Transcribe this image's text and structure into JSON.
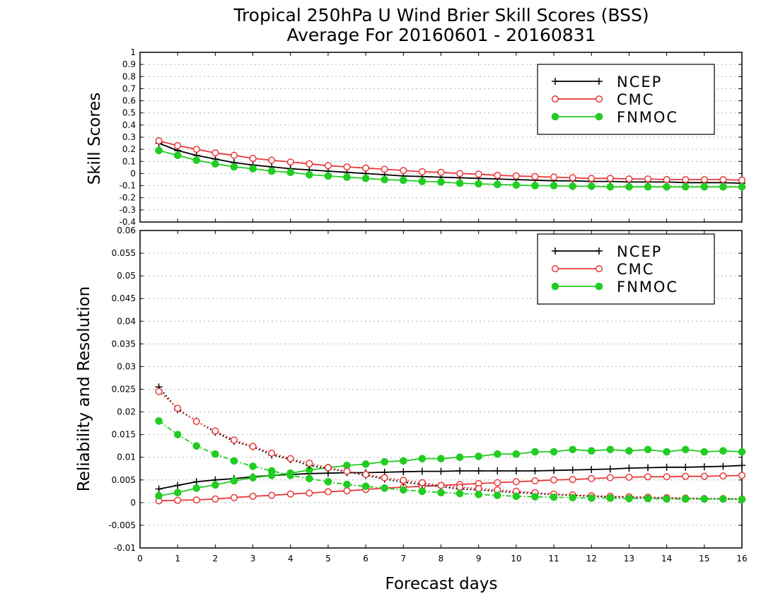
{
  "title": "Tropical 250hPa U Wind Brier Skill Scores (BSS)",
  "subtitle": "Average For 20160601 - 20160831",
  "colors": {
    "NCEP": "#000000",
    "CMC": "#e8383b",
    "FNMOC": "#22cc22",
    "grid": "#b4b4b4"
  },
  "chart_data": [
    {
      "type": "line",
      "ylabel": "Skill Scores",
      "xlim": [
        0,
        16
      ],
      "ylim": [
        -0.4,
        1
      ],
      "y_ticks": [
        "-0.4",
        "-0.3",
        "-0.2",
        "-0.1",
        "0",
        "0.1",
        "0.2",
        "0.3",
        "0.4",
        "0.5",
        "0.6",
        "0.7",
        "0.8",
        "0.9",
        "1"
      ],
      "grid": "horizontal dotted",
      "legend": {
        "placement": "top-right",
        "entries": [
          "NCEP",
          "CMC",
          "FNMOC"
        ]
      },
      "x": [
        0.5,
        1,
        1.5,
        2,
        2.5,
        3,
        3.5,
        4,
        4.5,
        5,
        5.5,
        6,
        6.5,
        7,
        7.5,
        8,
        8.5,
        9,
        9.5,
        10,
        10.5,
        11,
        11.5,
        12,
        12.5,
        13,
        13.5,
        14,
        14.5,
        15,
        15.5,
        16
      ],
      "series": [
        {
          "name": "NCEP",
          "marker": "plus",
          "line": "solid",
          "values": [
            0.25,
            0.19,
            0.15,
            0.12,
            0.09,
            0.07,
            0.055,
            0.04,
            0.03,
            0.02,
            0.01,
            0.0,
            -0.01,
            -0.02,
            -0.025,
            -0.03,
            -0.035,
            -0.04,
            -0.045,
            -0.05,
            -0.055,
            -0.06,
            -0.06,
            -0.065,
            -0.065,
            -0.07,
            -0.07,
            -0.07,
            -0.075,
            -0.075,
            -0.075,
            -0.08
          ]
        },
        {
          "name": "CMC",
          "marker": "open-circle",
          "line": "solid",
          "values": [
            0.27,
            0.23,
            0.2,
            0.17,
            0.15,
            0.125,
            0.11,
            0.095,
            0.08,
            0.065,
            0.055,
            0.045,
            0.035,
            0.025,
            0.015,
            0.01,
            0.0,
            -0.005,
            -0.015,
            -0.02,
            -0.025,
            -0.03,
            -0.035,
            -0.04,
            -0.04,
            -0.045,
            -0.045,
            -0.05,
            -0.05,
            -0.05,
            -0.05,
            -0.055
          ]
        },
        {
          "name": "FNMOC",
          "marker": "filled-circle",
          "line": "solid",
          "values": [
            0.19,
            0.15,
            0.11,
            0.08,
            0.055,
            0.04,
            0.02,
            0.01,
            -0.01,
            -0.02,
            -0.03,
            -0.04,
            -0.05,
            -0.055,
            -0.065,
            -0.07,
            -0.08,
            -0.085,
            -0.09,
            -0.095,
            -0.1,
            -0.1,
            -0.105,
            -0.105,
            -0.11,
            -0.11,
            -0.11,
            -0.11,
            -0.11,
            -0.11,
            -0.11,
            -0.11
          ]
        }
      ]
    },
    {
      "type": "line",
      "xlabel": "Forecast days",
      "ylabel": "Reliability and Resolution",
      "xlim": [
        0,
        16
      ],
      "ylim": [
        -0.01,
        0.06
      ],
      "x_ticks": [
        "0",
        "1",
        "2",
        "3",
        "4",
        "5",
        "6",
        "7",
        "8",
        "9",
        "10",
        "11",
        "12",
        "13",
        "14",
        "15",
        "16"
      ],
      "y_ticks": [
        "-0.01",
        "-0.005",
        "0",
        "0.005",
        "0.01",
        "0.015",
        "0.02",
        "0.025",
        "0.03",
        "0.035",
        "0.04",
        "0.045",
        "0.05",
        "0.055",
        "0.06"
      ],
      "grid": "horizontal dotted",
      "legend": {
        "placement": "top-right",
        "entries": [
          "NCEP",
          "CMC",
          "FNMOC"
        ]
      },
      "x": [
        0.5,
        1,
        1.5,
        2,
        2.5,
        3,
        3.5,
        4,
        4.5,
        5,
        5.5,
        6,
        6.5,
        7,
        7.5,
        8,
        8.5,
        9,
        9.5,
        10,
        10.5,
        11,
        11.5,
        12,
        12.5,
        13,
        13.5,
        14,
        14.5,
        15,
        15.5,
        16
      ],
      "series": [
        {
          "name": "NCEP",
          "measure": "resolution",
          "marker": "plus",
          "line": "solid",
          "values": [
            0.003,
            0.0038,
            0.0046,
            0.005,
            0.0053,
            0.0057,
            0.006,
            0.0062,
            0.0064,
            0.0065,
            0.0066,
            0.0066,
            0.0067,
            0.0068,
            0.0069,
            0.0069,
            0.007,
            0.007,
            0.007,
            0.007,
            0.007,
            0.0071,
            0.0072,
            0.0073,
            0.0074,
            0.0076,
            0.0077,
            0.0078,
            0.0078,
            0.0079,
            0.008,
            0.0082
          ]
        },
        {
          "name": "CMC",
          "measure": "resolution",
          "marker": "open-circle",
          "line": "solid",
          "values": [
            0.0004,
            0.0005,
            0.0006,
            0.0008,
            0.0011,
            0.0014,
            0.0016,
            0.0019,
            0.0021,
            0.0024,
            0.0026,
            0.0029,
            0.0032,
            0.0034,
            0.0036,
            0.0038,
            0.004,
            0.0042,
            0.0044,
            0.0046,
            0.0048,
            0.005,
            0.0051,
            0.0053,
            0.0055,
            0.0056,
            0.0057,
            0.0057,
            0.0058,
            0.0058,
            0.0059,
            0.006
          ]
        },
        {
          "name": "FNMOC",
          "measure": "resolution",
          "marker": "filled-circle",
          "line": "solid",
          "values": [
            0.0015,
            0.0022,
            0.0032,
            0.0039,
            0.0048,
            0.0055,
            0.006,
            0.0065,
            0.0072,
            0.0077,
            0.0082,
            0.0085,
            0.009,
            0.0092,
            0.0097,
            0.0097,
            0.01,
            0.0102,
            0.0107,
            0.0107,
            0.0112,
            0.0112,
            0.0117,
            0.0114,
            0.0117,
            0.0114,
            0.0117,
            0.0112,
            0.0117,
            0.0112,
            0.0114,
            0.0112
          ]
        },
        {
          "name": "NCEP",
          "measure": "reliability",
          "marker": "plus",
          "line": "dotted",
          "values": [
            0.0255,
            0.0205,
            0.018,
            0.0155,
            0.0135,
            0.0123,
            0.0105,
            0.0095,
            0.0082,
            0.0075,
            0.0068,
            0.006,
            0.0052,
            0.0045,
            0.004,
            0.0035,
            0.003,
            0.0028,
            0.0025,
            0.0022,
            0.002,
            0.0018,
            0.0016,
            0.0014,
            0.0013,
            0.0012,
            0.0011,
            0.001,
            0.0009,
            0.0009,
            0.0008,
            0.0008
          ]
        },
        {
          "name": "CMC",
          "measure": "reliability",
          "marker": "open-circle",
          "line": "dotted",
          "values": [
            0.0245,
            0.0208,
            0.0179,
            0.0158,
            0.0138,
            0.0124,
            0.0109,
            0.0097,
            0.0087,
            0.0077,
            0.0069,
            0.0062,
            0.0055,
            0.0049,
            0.0044,
            0.0038,
            0.0034,
            0.0031,
            0.0028,
            0.0025,
            0.0022,
            0.0019,
            0.0017,
            0.0015,
            0.0014,
            0.0013,
            0.0012,
            0.0011,
            0.001,
            0.0009,
            0.0009,
            0.0008
          ]
        },
        {
          "name": "FNMOC",
          "measure": "reliability",
          "marker": "filled-circle",
          "line": "dashdot",
          "values": [
            0.018,
            0.015,
            0.0125,
            0.0107,
            0.0092,
            0.008,
            0.007,
            0.006,
            0.0053,
            0.0046,
            0.004,
            0.0036,
            0.0032,
            0.0028,
            0.0025,
            0.0022,
            0.002,
            0.0018,
            0.0016,
            0.0014,
            0.0013,
            0.0012,
            0.0011,
            0.001,
            0.001,
            0.0009,
            0.0009,
            0.0008,
            0.0008,
            0.0008,
            0.0008,
            0.0007
          ]
        }
      ]
    }
  ]
}
